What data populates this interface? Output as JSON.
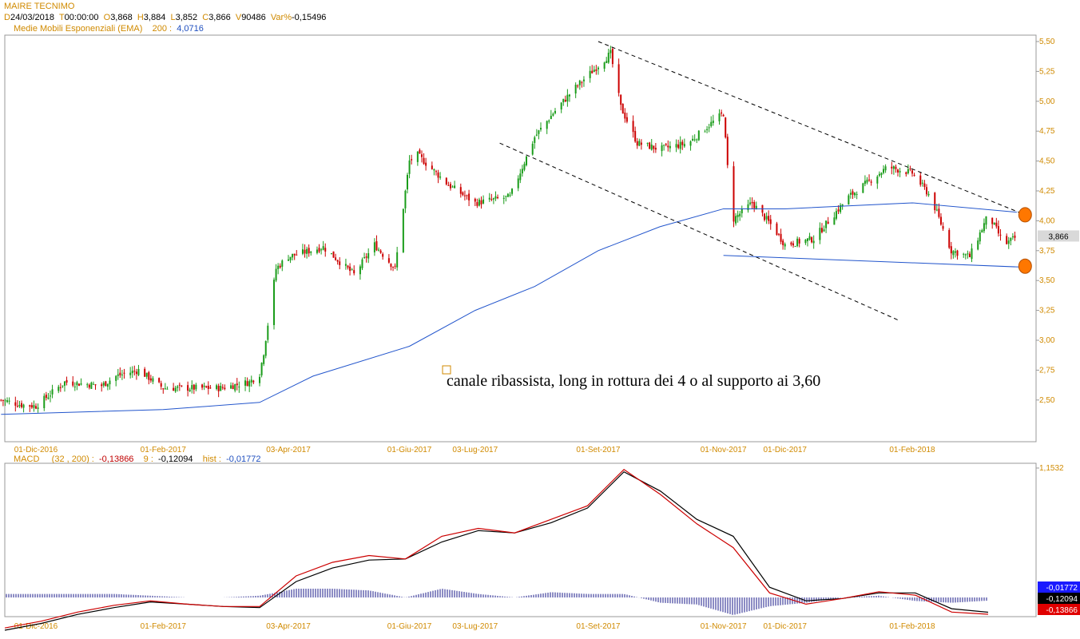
{
  "header": {
    "title": "MAIRE TECNIMO",
    "ohlc": [
      {
        "key": "D",
        "value": "24/03/2018"
      },
      {
        "key": "T",
        "value": "00:00:00"
      },
      {
        "key": "O",
        "value": "3,868"
      },
      {
        "key": "H",
        "value": "3,884"
      },
      {
        "key": "L",
        "value": "3,852"
      },
      {
        "key": "C",
        "value": "3,866"
      },
      {
        "key": "V",
        "value": "90486"
      },
      {
        "key": "Var%",
        "value": "-0,15496"
      }
    ],
    "ema_label": "Medie Mobili Esponenziali (EMA)",
    "ema_period": "200 :",
    "ema_value": "4,0716"
  },
  "annotation": "canale ribassista, long in rottura dei 4 o al supporto ai 3,60",
  "macd_header": {
    "label": "MACD",
    "params": "(32 , 200) :",
    "macd_value": "-0,13866",
    "signal_label": "9 :",
    "signal_value": "-0,12094",
    "hist_label": "hist :",
    "hist_value": "-0,01772"
  },
  "colors": {
    "up": "#1a9c1a",
    "down": "#cc0000",
    "ema": "#2255cc",
    "axis_label": "#d08a00",
    "macd": "#cc0000",
    "signal": "#000000",
    "hist": "#1a1a8a",
    "marker": "#ff7700"
  },
  "chart_data": [
    {
      "type": "candlestick",
      "title": "MAIRE TECNIMO",
      "ylim": [
        2.2,
        5.55
      ],
      "yticks": [
        "5,50",
        "5,25",
        "5,00",
        "4,75",
        "4,50",
        "4,25",
        "4,00",
        "3,75",
        "3,50",
        "3,25",
        "3,00",
        "2,75",
        "2,50"
      ],
      "ytick_values": [
        5.5,
        5.25,
        5.0,
        4.75,
        4.5,
        4.25,
        4.0,
        3.75,
        3.5,
        3.25,
        3.0,
        2.75,
        2.5
      ],
      "xticks": [
        "01-Dic-2016",
        "01-Feb-2017",
        "03-Apr-2017",
        "01-Giu-2017",
        "03-Lug-2017",
        "01-Set-2017",
        "01-Nov-2017",
        "01-Dic-2017",
        "01-Feb-2018"
      ],
      "last_price_label": "3,866",
      "close_series": [
        {
          "date": "2016-11-14",
          "close": 2.5
        },
        {
          "date": "2016-11-24",
          "close": 2.46
        },
        {
          "date": "2016-12-01",
          "close": 2.45
        },
        {
          "date": "2016-12-15",
          "close": 2.65
        },
        {
          "date": "2017-01-02",
          "close": 2.62
        },
        {
          "date": "2017-01-09",
          "close": 2.7
        },
        {
          "date": "2017-01-20",
          "close": 2.75
        },
        {
          "date": "2017-02-01",
          "close": 2.6
        },
        {
          "date": "2017-03-01",
          "close": 2.6
        },
        {
          "date": "2017-03-15",
          "close": 2.65
        },
        {
          "date": "2017-03-20",
          "close": 2.72
        },
        {
          "date": "2017-03-22",
          "close": 2.9
        },
        {
          "date": "2017-03-28",
          "close": 3.6
        },
        {
          "date": "2017-04-03",
          "close": 3.7
        },
        {
          "date": "2017-04-20",
          "close": 3.78
        },
        {
          "date": "2017-05-05",
          "close": 3.55
        },
        {
          "date": "2017-05-15",
          "close": 3.8
        },
        {
          "date": "2017-05-25",
          "close": 3.6
        },
        {
          "date": "2017-06-01",
          "close": 4.5
        },
        {
          "date": "2017-06-05",
          "close": 4.55
        },
        {
          "date": "2017-06-20",
          "close": 4.3
        },
        {
          "date": "2017-07-03",
          "close": 4.15
        },
        {
          "date": "2017-07-20",
          "close": 4.2
        },
        {
          "date": "2017-08-01",
          "close": 4.7
        },
        {
          "date": "2017-08-10",
          "close": 4.9
        },
        {
          "date": "2017-08-20",
          "close": 5.1
        },
        {
          "date": "2017-09-01",
          "close": 5.3
        },
        {
          "date": "2017-09-07",
          "close": 5.4
        },
        {
          "date": "2017-09-12",
          "close": 4.95
        },
        {
          "date": "2017-09-20",
          "close": 4.65
        },
        {
          "date": "2017-10-01",
          "close": 4.6
        },
        {
          "date": "2017-10-15",
          "close": 4.65
        },
        {
          "date": "2017-10-25",
          "close": 4.8
        },
        {
          "date": "2017-11-01",
          "close": 4.9
        },
        {
          "date": "2017-11-05",
          "close": 4.0
        },
        {
          "date": "2017-11-15",
          "close": 4.15
        },
        {
          "date": "2017-11-25",
          "close": 3.95
        },
        {
          "date": "2017-12-01",
          "close": 3.8
        },
        {
          "date": "2017-12-15",
          "close": 3.85
        },
        {
          "date": "2018-01-01",
          "close": 4.2
        },
        {
          "date": "2018-01-20",
          "close": 4.45
        },
        {
          "date": "2018-02-01",
          "close": 4.4
        },
        {
          "date": "2018-02-10",
          "close": 4.2
        },
        {
          "date": "2018-02-20",
          "close": 3.75
        },
        {
          "date": "2018-03-01",
          "close": 3.7
        },
        {
          "date": "2018-03-10",
          "close": 4.05
        },
        {
          "date": "2018-03-18",
          "close": 3.8
        },
        {
          "date": "2018-03-24",
          "close": 3.866
        }
      ],
      "ema200": [
        {
          "date": "2016-11-14",
          "value": 2.38
        },
        {
          "date": "2017-02-01",
          "value": 2.42
        },
        {
          "date": "2017-03-20",
          "value": 2.48
        },
        {
          "date": "2017-04-15",
          "value": 2.7
        },
        {
          "date": "2017-06-01",
          "value": 2.95
        },
        {
          "date": "2017-07-03",
          "value": 3.25
        },
        {
          "date": "2017-08-01",
          "value": 3.45
        },
        {
          "date": "2017-09-01",
          "value": 3.75
        },
        {
          "date": "2017-10-01",
          "value": 3.95
        },
        {
          "date": "2017-11-01",
          "value": 4.1
        },
        {
          "date": "2017-12-01",
          "value": 4.1
        },
        {
          "date": "2018-02-01",
          "value": 4.15
        },
        {
          "date": "2018-03-24",
          "value": 4.0716
        }
      ],
      "drawings": [
        {
          "name": "upper-channel-line",
          "style": "dashed",
          "from": {
            "date": "2017-09-01",
            "value": 5.5
          },
          "to": {
            "date": "2018-03-28",
            "value": 4.05
          }
        },
        {
          "name": "lower-channel-line",
          "style": "dashed",
          "from": {
            "date": "2017-07-15",
            "value": 4.65
          },
          "to": {
            "date": "2018-01-25",
            "value": 3.17
          }
        },
        {
          "name": "support-line",
          "style": "solid",
          "from": {
            "date": "2017-11-01",
            "value": 3.71
          },
          "to": {
            "date": "2018-03-30",
            "value": 3.61
          }
        }
      ],
      "markers": [
        {
          "name": "breakout-marker",
          "date": "2018-03-28",
          "value": 4.05
        },
        {
          "name": "support-marker",
          "date": "2018-03-28",
          "value": 3.62
        }
      ]
    },
    {
      "type": "macd",
      "title": "MACD",
      "ytick": "1,1532",
      "value_badges": [
        "-0,01772",
        "-0,12094",
        "-0,13866"
      ],
      "series": [
        {
          "name": "MACD",
          "values": [
            -0.26,
            -0.2,
            -0.12,
            -0.06,
            -0.02,
            -0.05,
            -0.07,
            -0.07,
            0.2,
            0.32,
            0.38,
            0.35,
            0.55,
            0.62,
            0.58,
            0.7,
            0.82,
            1.14,
            0.92,
            0.66,
            0.45,
            0.05,
            -0.05,
            0.0,
            0.06,
            0.03,
            -0.12,
            -0.139
          ]
        },
        {
          "name": "Signal",
          "values": [
            -0.28,
            -0.22,
            -0.14,
            -0.08,
            -0.03,
            -0.05,
            -0.07,
            -0.08,
            0.15,
            0.27,
            0.34,
            0.35,
            0.5,
            0.6,
            0.58,
            0.67,
            0.8,
            1.12,
            0.95,
            0.7,
            0.55,
            0.1,
            -0.02,
            0.0,
            0.05,
            0.05,
            -0.09,
            -0.121
          ]
        },
        {
          "name": "Histogram",
          "values": [
            0.02,
            0.02,
            0.02,
            0.02,
            0.01,
            0.0,
            0.0,
            0.01,
            0.05,
            0.05,
            0.04,
            0.0,
            0.05,
            0.02,
            0.0,
            0.03,
            0.02,
            0.02,
            -0.03,
            -0.04,
            -0.1,
            -0.05,
            -0.03,
            0.0,
            0.01,
            -0.02,
            -0.03,
            -0.018
          ]
        }
      ]
    }
  ]
}
